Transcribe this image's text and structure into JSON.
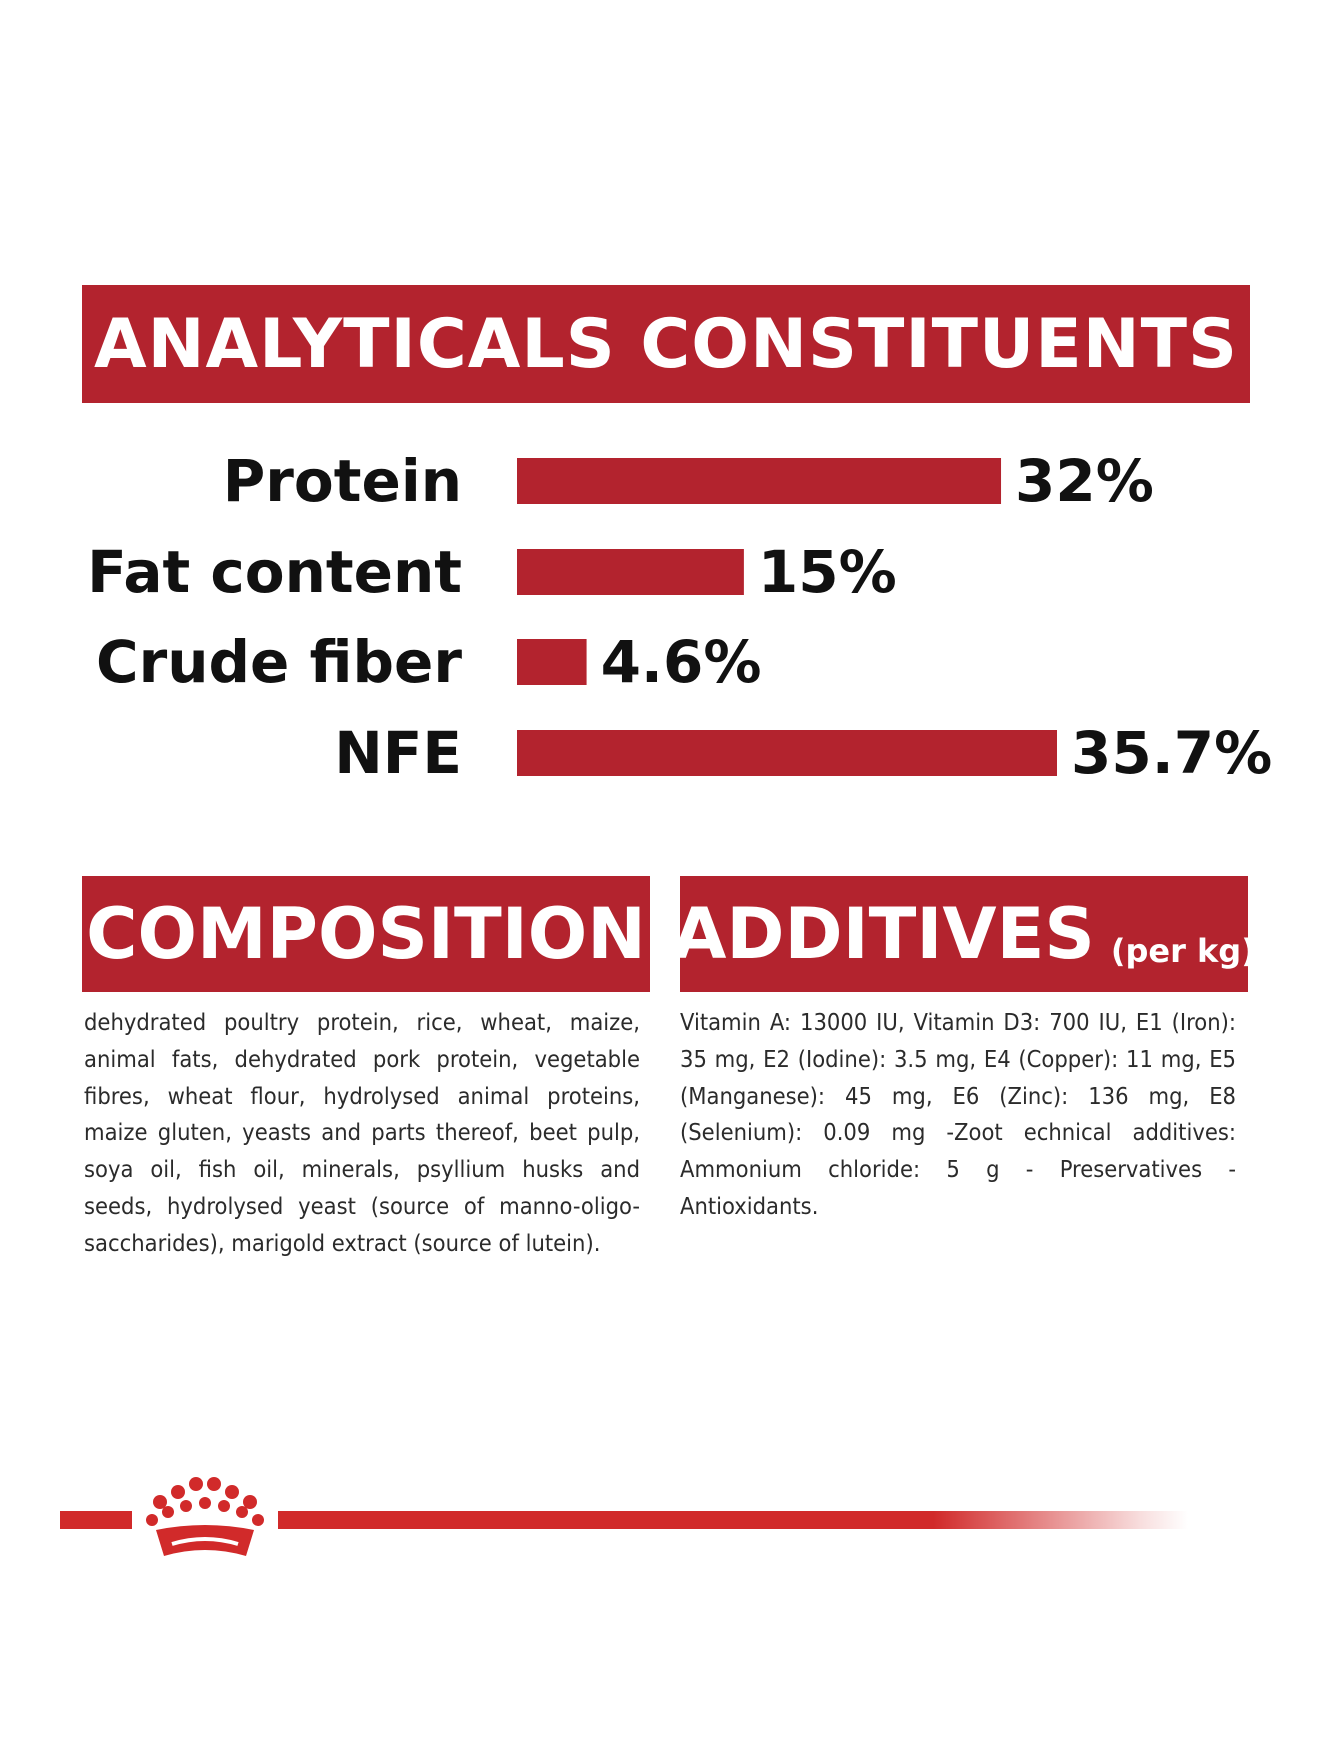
{
  "analytics": {
    "title": "ANALYTICALS CONSTITUENTS"
  },
  "chart_data": {
    "type": "bar",
    "orientation": "horizontal",
    "title": "ANALYTICALS CONSTITUENTS",
    "categories": [
      "Protein",
      "Fat content",
      "Crude fiber",
      "NFE"
    ],
    "values": [
      32,
      15,
      4.6,
      35.7
    ],
    "value_labels": [
      "32%",
      "15%",
      "4.6%",
      "35.7%"
    ],
    "unit": "%",
    "xlim": [
      0,
      35.7
    ],
    "grid": false,
    "legend": "none",
    "bar_color": "#b3232e"
  },
  "composition": {
    "title": "COMPOSITION",
    "text": "dehydrated poultry protein, rice, wheat, maize, animal fats, dehydrated pork protein, vegetable fibres, wheat flour, hydrolysed animal proteins, maize gluten, yeasts and parts thereof, beet pulp, soya oil, fish oil, minerals, psyllium husks and seeds, hydrolysed yeast (source of manno-oligo-saccharides), marigold extract (source of lutein)."
  },
  "additives": {
    "title": "ADDITIVES",
    "subtitle": "(per kg)",
    "text": "Vitamin A: 13000 IU, Vitamin D3: 700 IU, E1 (Iron): 35 mg, E2 (Iodine): 3.5 mg, E4 (Copper): 11 mg, E5 (Manganese): 45 mg, E6 (Zinc): 136 mg, E8 (Selenium): 0.09 mg -Zoot echnical additives: Ammonium chloride: 5 g - Preservatives - Antioxidants."
  },
  "colors": {
    "brand_red": "#b3232e",
    "footer_red": "#d12a2a"
  },
  "footer": {
    "logo_icon": "royal-canin-crown-icon"
  }
}
